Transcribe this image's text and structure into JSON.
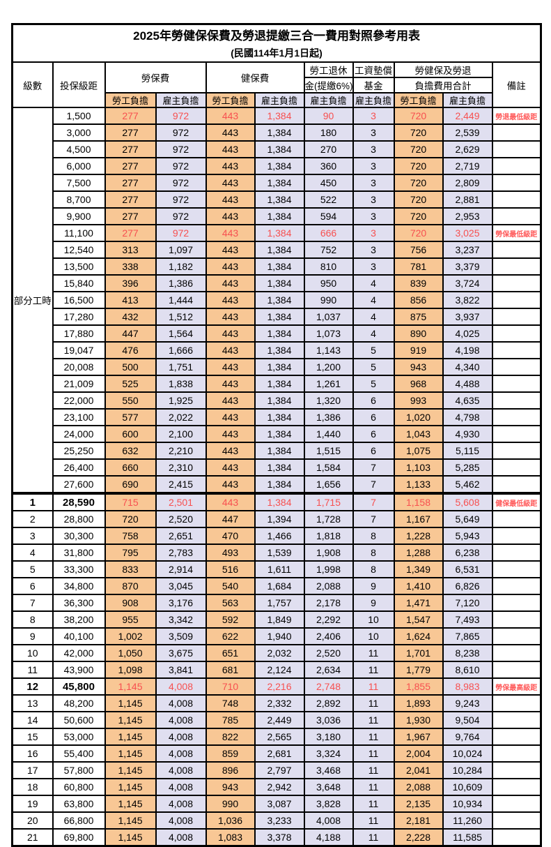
{
  "title": "2025年勞健保保費及勞退提繳三合一費用對照參考用表",
  "subtitle": "(民國114年1月1日起)",
  "header": {
    "level": "級數",
    "bracket": "投保級距",
    "labor_insurance": "勞保費",
    "health_insurance": "健保費",
    "pension_line1": "勞工退休",
    "pension_line2": "金(提繳6%)",
    "wage_fund_line1": "工資墊償",
    "wage_fund_line2": "基金",
    "total_line1": "勞健保及勞退",
    "total_line2": "負擔費用合計",
    "remark": "備註",
    "employee": "勞工負擔",
    "employer": "雇主負擔"
  },
  "part_time_label": "部分工時",
  "colors": {
    "employee_bg": "#F8C795",
    "employer_bg": "#E0DFF0",
    "highlight_red": "#F75050",
    "remark_red": "#FF5A5A",
    "border": "#000000"
  },
  "rows": [
    {
      "level": null,
      "bracket": "1,500",
      "values": [
        "277",
        "972",
        "443",
        "1,384",
        "90",
        "3",
        "720",
        "2,449"
      ],
      "remark": "勞退最低級距",
      "highlight": true
    },
    {
      "level": null,
      "bracket": "3,000",
      "values": [
        "277",
        "972",
        "443",
        "1,384",
        "180",
        "3",
        "720",
        "2,539"
      ],
      "remark": ""
    },
    {
      "level": null,
      "bracket": "4,500",
      "values": [
        "277",
        "972",
        "443",
        "1,384",
        "270",
        "3",
        "720",
        "2,629"
      ],
      "remark": ""
    },
    {
      "level": null,
      "bracket": "6,000",
      "values": [
        "277",
        "972",
        "443",
        "1,384",
        "360",
        "3",
        "720",
        "2,719"
      ],
      "remark": ""
    },
    {
      "level": null,
      "bracket": "7,500",
      "values": [
        "277",
        "972",
        "443",
        "1,384",
        "450",
        "3",
        "720",
        "2,809"
      ],
      "remark": ""
    },
    {
      "level": null,
      "bracket": "8,700",
      "values": [
        "277",
        "972",
        "443",
        "1,384",
        "522",
        "3",
        "720",
        "2,881"
      ],
      "remark": ""
    },
    {
      "level": null,
      "bracket": "9,900",
      "values": [
        "277",
        "972",
        "443",
        "1,384",
        "594",
        "3",
        "720",
        "2,953"
      ],
      "remark": ""
    },
    {
      "level": null,
      "bracket": "11,100",
      "values": [
        "277",
        "972",
        "443",
        "1,384",
        "666",
        "3",
        "720",
        "3,025"
      ],
      "remark": "勞保最低級距",
      "highlight": true
    },
    {
      "level": null,
      "bracket": "12,540",
      "values": [
        "313",
        "1,097",
        "443",
        "1,384",
        "752",
        "3",
        "756",
        "3,237"
      ],
      "remark": ""
    },
    {
      "level": null,
      "bracket": "13,500",
      "values": [
        "338",
        "1,182",
        "443",
        "1,384",
        "810",
        "3",
        "781",
        "3,379"
      ],
      "remark": ""
    },
    {
      "level": null,
      "bracket": "15,840",
      "values": [
        "396",
        "1,386",
        "443",
        "1,384",
        "950",
        "4",
        "839",
        "3,724"
      ],
      "remark": ""
    },
    {
      "level": null,
      "bracket": "16,500",
      "values": [
        "413",
        "1,444",
        "443",
        "1,384",
        "990",
        "4",
        "856",
        "3,822"
      ],
      "remark": ""
    },
    {
      "level": null,
      "bracket": "17,280",
      "values": [
        "432",
        "1,512",
        "443",
        "1,384",
        "1,037",
        "4",
        "875",
        "3,937"
      ],
      "remark": ""
    },
    {
      "level": null,
      "bracket": "17,880",
      "values": [
        "447",
        "1,564",
        "443",
        "1,384",
        "1,073",
        "4",
        "890",
        "4,025"
      ],
      "remark": ""
    },
    {
      "level": null,
      "bracket": "19,047",
      "values": [
        "476",
        "1,666",
        "443",
        "1,384",
        "1,143",
        "5",
        "919",
        "4,198"
      ],
      "remark": ""
    },
    {
      "level": null,
      "bracket": "20,008",
      "values": [
        "500",
        "1,751",
        "443",
        "1,384",
        "1,200",
        "5",
        "943",
        "4,340"
      ],
      "remark": ""
    },
    {
      "level": null,
      "bracket": "21,009",
      "values": [
        "525",
        "1,838",
        "443",
        "1,384",
        "1,261",
        "5",
        "968",
        "4,488"
      ],
      "remark": ""
    },
    {
      "level": null,
      "bracket": "22,000",
      "values": [
        "550",
        "1,925",
        "443",
        "1,384",
        "1,320",
        "6",
        "993",
        "4,635"
      ],
      "remark": ""
    },
    {
      "level": null,
      "bracket": "23,100",
      "values": [
        "577",
        "2,022",
        "443",
        "1,384",
        "1,386",
        "6",
        "1,020",
        "4,798"
      ],
      "remark": ""
    },
    {
      "level": null,
      "bracket": "24,000",
      "values": [
        "600",
        "2,100",
        "443",
        "1,384",
        "1,440",
        "6",
        "1,043",
        "4,930"
      ],
      "remark": ""
    },
    {
      "level": null,
      "bracket": "25,250",
      "values": [
        "632",
        "2,210",
        "443",
        "1,384",
        "1,515",
        "6",
        "1,075",
        "5,115"
      ],
      "remark": ""
    },
    {
      "level": null,
      "bracket": "26,400",
      "values": [
        "660",
        "2,310",
        "443",
        "1,384",
        "1,584",
        "7",
        "1,103",
        "5,285"
      ],
      "remark": ""
    },
    {
      "level": null,
      "bracket": "27,600",
      "values": [
        "690",
        "2,415",
        "443",
        "1,384",
        "1,656",
        "7",
        "1,133",
        "5,462"
      ],
      "remark": ""
    },
    {
      "level": "1",
      "bracket": "28,590",
      "values": [
        "715",
        "2,501",
        "443",
        "1,384",
        "1,715",
        "7",
        "1,158",
        "5,608"
      ],
      "remark": "健保最低級距",
      "highlight": true,
      "emph": true,
      "section_break": true
    },
    {
      "level": "2",
      "bracket": "28,800",
      "values": [
        "720",
        "2,520",
        "447",
        "1,394",
        "1,728",
        "7",
        "1,167",
        "5,649"
      ],
      "remark": ""
    },
    {
      "level": "3",
      "bracket": "30,300",
      "values": [
        "758",
        "2,651",
        "470",
        "1,466",
        "1,818",
        "8",
        "1,228",
        "5,943"
      ],
      "remark": ""
    },
    {
      "level": "4",
      "bracket": "31,800",
      "values": [
        "795",
        "2,783",
        "493",
        "1,539",
        "1,908",
        "8",
        "1,288",
        "6,238"
      ],
      "remark": ""
    },
    {
      "level": "5",
      "bracket": "33,300",
      "values": [
        "833",
        "2,914",
        "516",
        "1,611",
        "1,998",
        "8",
        "1,349",
        "6,531"
      ],
      "remark": ""
    },
    {
      "level": "6",
      "bracket": "34,800",
      "values": [
        "870",
        "3,045",
        "540",
        "1,684",
        "2,088",
        "9",
        "1,410",
        "6,826"
      ],
      "remark": ""
    },
    {
      "level": "7",
      "bracket": "36,300",
      "values": [
        "908",
        "3,176",
        "563",
        "1,757",
        "2,178",
        "9",
        "1,471",
        "7,120"
      ],
      "remark": ""
    },
    {
      "level": "8",
      "bracket": "38,200",
      "values": [
        "955",
        "3,342",
        "592",
        "1,849",
        "2,292",
        "10",
        "1,547",
        "7,493"
      ],
      "remark": ""
    },
    {
      "level": "9",
      "bracket": "40,100",
      "values": [
        "1,002",
        "3,509",
        "622",
        "1,940",
        "2,406",
        "10",
        "1,624",
        "7,865"
      ],
      "remark": ""
    },
    {
      "level": "10",
      "bracket": "42,000",
      "values": [
        "1,050",
        "3,675",
        "651",
        "2,032",
        "2,520",
        "11",
        "1,701",
        "8,238"
      ],
      "remark": ""
    },
    {
      "level": "11",
      "bracket": "43,900",
      "values": [
        "1,098",
        "3,841",
        "681",
        "2,124",
        "2,634",
        "11",
        "1,779",
        "8,610"
      ],
      "remark": ""
    },
    {
      "level": "12",
      "bracket": "45,800",
      "values": [
        "1,145",
        "4,008",
        "710",
        "2,216",
        "2,748",
        "11",
        "1,855",
        "8,983"
      ],
      "remark": "勞保最高級距",
      "highlight": true,
      "emph": true
    },
    {
      "level": "13",
      "bracket": "48,200",
      "values": [
        "1,145",
        "4,008",
        "748",
        "2,332",
        "2,892",
        "11",
        "1,893",
        "9,243"
      ],
      "remark": ""
    },
    {
      "level": "14",
      "bracket": "50,600",
      "values": [
        "1,145",
        "4,008",
        "785",
        "2,449",
        "3,036",
        "11",
        "1,930",
        "9,504"
      ],
      "remark": ""
    },
    {
      "level": "15",
      "bracket": "53,000",
      "values": [
        "1,145",
        "4,008",
        "822",
        "2,565",
        "3,180",
        "11",
        "1,967",
        "9,764"
      ],
      "remark": ""
    },
    {
      "level": "16",
      "bracket": "55,400",
      "values": [
        "1,145",
        "4,008",
        "859",
        "2,681",
        "3,324",
        "11",
        "2,004",
        "10,024"
      ],
      "remark": ""
    },
    {
      "level": "17",
      "bracket": "57,800",
      "values": [
        "1,145",
        "4,008",
        "896",
        "2,797",
        "3,468",
        "11",
        "2,041",
        "10,284"
      ],
      "remark": ""
    },
    {
      "level": "18",
      "bracket": "60,800",
      "values": [
        "1,145",
        "4,008",
        "943",
        "2,942",
        "3,648",
        "11",
        "2,088",
        "10,609"
      ],
      "remark": ""
    },
    {
      "level": "19",
      "bracket": "63,800",
      "values": [
        "1,145",
        "4,008",
        "990",
        "3,087",
        "3,828",
        "11",
        "2,135",
        "10,934"
      ],
      "remark": ""
    },
    {
      "level": "20",
      "bracket": "66,800",
      "values": [
        "1,145",
        "4,008",
        "1,036",
        "3,233",
        "4,008",
        "11",
        "2,181",
        "11,260"
      ],
      "remark": ""
    },
    {
      "level": "21",
      "bracket": "69,800",
      "values": [
        "1,145",
        "4,008",
        "1,083",
        "3,378",
        "4,188",
        "11",
        "2,228",
        "11,585"
      ],
      "remark": ""
    }
  ]
}
